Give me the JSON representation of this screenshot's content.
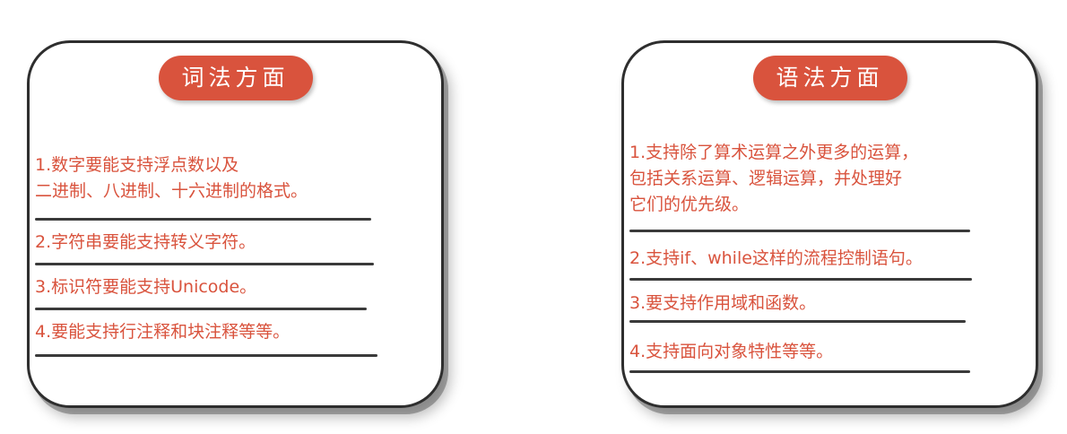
{
  "left_card": {
    "title": "词法方面",
    "items": [
      {
        "line1": "1.数字要能支持浮点数以及",
        "line2": "二进制、八进制、十六进制的格式。"
      },
      {
        "line1": "2.字符串要能支持转义字符。"
      },
      {
        "line1": "3.标识符要能支持Unicode。"
      },
      {
        "line1": "4.要能支持行注释和块注释等等。"
      }
    ]
  },
  "right_card": {
    "title": "语法方面",
    "items": [
      {
        "line1": "1.支持除了算术运算之外更多的运算，",
        "line2": "包括关系运算、逻辑运算，并处理好",
        "line3": "它们的优先级。"
      },
      {
        "line1": "2.支持if、while这样的流程控制语句。"
      },
      {
        "line1": "3.要支持作用域和函数。"
      },
      {
        "line1": "4.支持面向对象特性等等。"
      }
    ]
  },
  "colors": {
    "accent": "#d9533d",
    "border": "#2e2e2e",
    "rule": "#3a3a3a"
  }
}
